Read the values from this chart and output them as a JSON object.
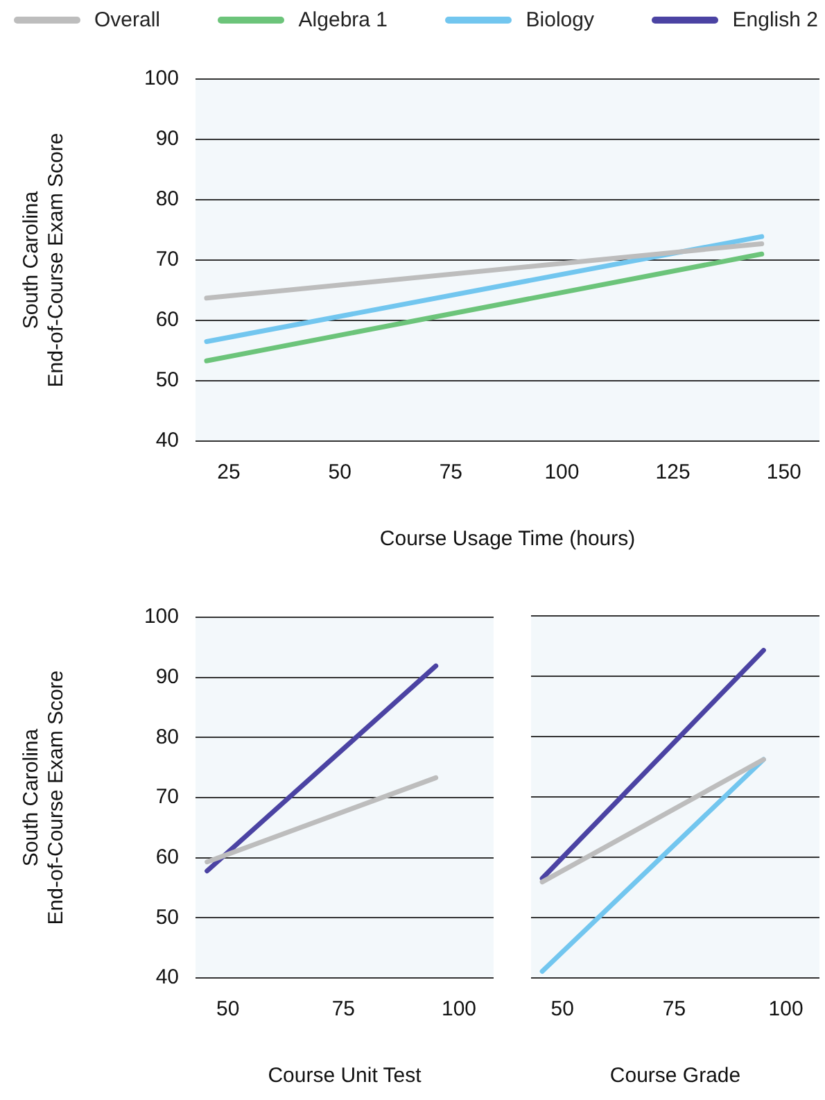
{
  "chart_data": [
    {
      "type": "line",
      "xlabel": "Course Usage Time (hours)",
      "ylabel": "South Carolina\nEnd-of-Course Exam Score",
      "x": [
        20,
        145
      ],
      "xlim": [
        17.5,
        158
      ],
      "xticks": [
        25,
        50,
        75,
        100,
        125,
        150
      ],
      "ylim": [
        40,
        100
      ],
      "yticks": [
        40,
        50,
        60,
        70,
        80,
        90,
        100
      ],
      "grid": "y",
      "legend": "top",
      "series": [
        {
          "name": "Overall",
          "color": "#bdbdbd",
          "values": [
            63.7,
            72.7
          ]
        },
        {
          "name": "Algebra 1",
          "color": "#6cc47a",
          "values": [
            53.3,
            71.0
          ]
        },
        {
          "name": "Biology",
          "color": "#72c6ef",
          "values": [
            56.5,
            73.9
          ]
        },
        {
          "name": "English 2",
          "color": "#4b43a3",
          "values": [
            null,
            null
          ]
        }
      ]
    },
    {
      "type": "line",
      "xlabel": "Course Unit Test",
      "ylabel": "South Carolina\nEnd-of-Course Exam Score",
      "x": [
        45.5,
        95
      ],
      "xlim": [
        43,
        107.5
      ],
      "xticks": [
        50,
        75,
        100
      ],
      "ylim": [
        40,
        100
      ],
      "yticks": [
        40,
        50,
        60,
        70,
        80,
        90,
        100
      ],
      "grid": "y",
      "series": [
        {
          "color": "#bdbdbd",
          "values": [
            59.3,
            73.3
          ]
        },
        {
          "color": "#4b43a3",
          "values": [
            57.8,
            91.9
          ]
        }
      ]
    },
    {
      "type": "line",
      "xlabel": "Course Grade",
      "x": [
        45.5,
        95
      ],
      "xlim": [
        43,
        107.5
      ],
      "xticks": [
        50,
        75,
        100
      ],
      "ylim": [
        40,
        100
      ],
      "yticks": [
        40,
        50,
        60,
        70,
        80,
        90,
        100
      ],
      "grid": "y",
      "tick_labels": "x",
      "series": [
        {
          "color": "#bdbdbd",
          "values": [
            55.9,
            76.2
          ]
        },
        {
          "color": "#72c6ef",
          "values": [
            41.1,
            76.2
          ]
        },
        {
          "color": "#4b43a3",
          "values": [
            56.5,
            94.3
          ]
        }
      ]
    }
  ]
}
